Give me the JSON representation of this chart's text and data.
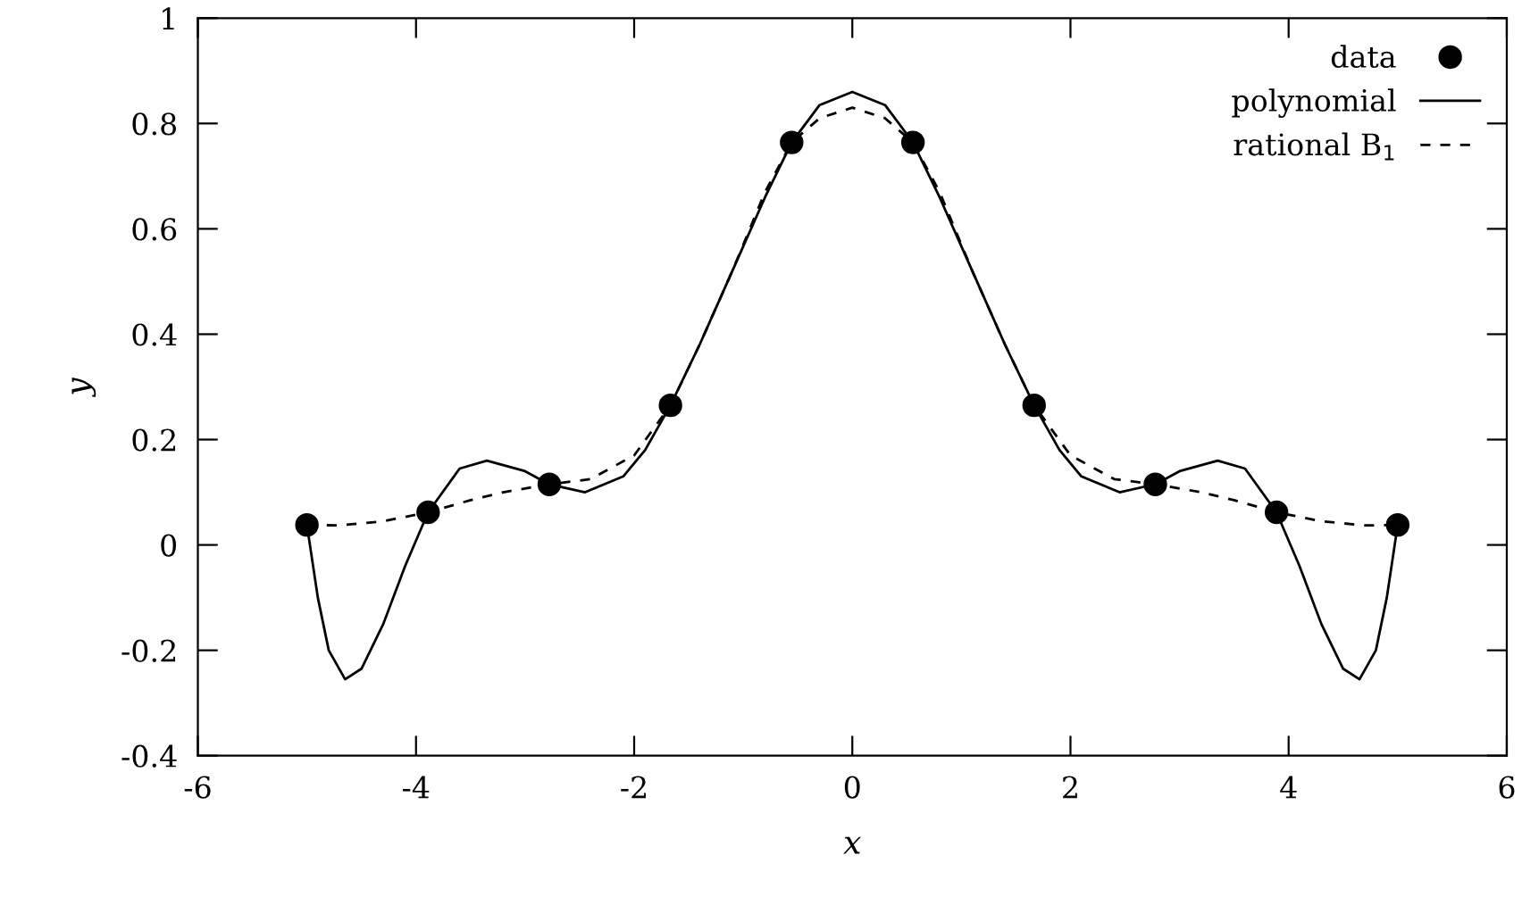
{
  "chart_data": {
    "type": "line",
    "xlabel": "x",
    "ylabel": "y",
    "xlim": [
      -6,
      6
    ],
    "ylim": [
      -0.4,
      1
    ],
    "xticks": [
      -6,
      -4,
      -2,
      0,
      2,
      4,
      6
    ],
    "yticks": [
      -0.4,
      -0.2,
      0,
      0.2,
      0.4,
      0.6,
      0.8,
      1
    ],
    "grid": false,
    "legend": "top right",
    "series": [
      {
        "name": "data",
        "type": "scatter",
        "marker": "circle",
        "color": "#000000",
        "x": [
          -5,
          -3.889,
          -2.778,
          -1.667,
          -0.556,
          0.556,
          1.667,
          2.778,
          3.889,
          5
        ],
        "values": [
          0.038,
          0.062,
          0.115,
          0.265,
          0.764,
          0.764,
          0.265,
          0.115,
          0.062,
          0.038
        ]
      },
      {
        "name": "polynomial",
        "line_style": "solid",
        "color": "#000000",
        "x": [
          -5,
          -4.9,
          -4.8,
          -4.65,
          -4.5,
          -4.3,
          -4.1,
          -3.889,
          -3.6,
          -3.35,
          -3.0,
          -2.778,
          -2.45,
          -2.1,
          -1.9,
          -1.667,
          -1.4,
          -1.1,
          -0.8,
          -0.556,
          -0.3,
          0,
          0.3,
          0.556,
          0.8,
          1.1,
          1.4,
          1.667,
          1.9,
          2.1,
          2.45,
          2.778,
          3.0,
          3.35,
          3.6,
          3.889,
          4.1,
          4.3,
          4.5,
          4.65,
          4.8,
          4.9,
          5
        ],
        "values": [
          0.038,
          -0.1,
          -0.2,
          -0.255,
          -0.235,
          -0.15,
          -0.04,
          0.062,
          0.145,
          0.16,
          0.14,
          0.115,
          0.1,
          0.13,
          0.18,
          0.265,
          0.38,
          0.52,
          0.66,
          0.764,
          0.835,
          0.86,
          0.835,
          0.764,
          0.66,
          0.52,
          0.38,
          0.265,
          0.18,
          0.13,
          0.1,
          0.115,
          0.14,
          0.16,
          0.145,
          0.062,
          -0.04,
          -0.15,
          -0.235,
          -0.255,
          -0.2,
          -0.1,
          0.038
        ]
      },
      {
        "name": "rational B$_{1}$",
        "line_style": "dashed",
        "color": "#000000",
        "x": [
          -5,
          -4.7,
          -4.3,
          -3.889,
          -3.5,
          -3.2,
          -2.778,
          -2.4,
          -2.0,
          -1.667,
          -1.4,
          -1.1,
          -0.8,
          -0.556,
          -0.3,
          0,
          0.3,
          0.556,
          0.8,
          1.1,
          1.4,
          1.667,
          2.0,
          2.4,
          2.778,
          3.2,
          3.5,
          3.889,
          4.3,
          4.7,
          5
        ],
        "values": [
          0.038,
          0.037,
          0.045,
          0.062,
          0.085,
          0.1,
          0.115,
          0.125,
          0.17,
          0.265,
          0.38,
          0.52,
          0.67,
          0.764,
          0.81,
          0.83,
          0.81,
          0.764,
          0.67,
          0.52,
          0.38,
          0.265,
          0.17,
          0.125,
          0.115,
          0.1,
          0.085,
          0.062,
          0.045,
          0.037,
          0.038
        ]
      }
    ]
  }
}
